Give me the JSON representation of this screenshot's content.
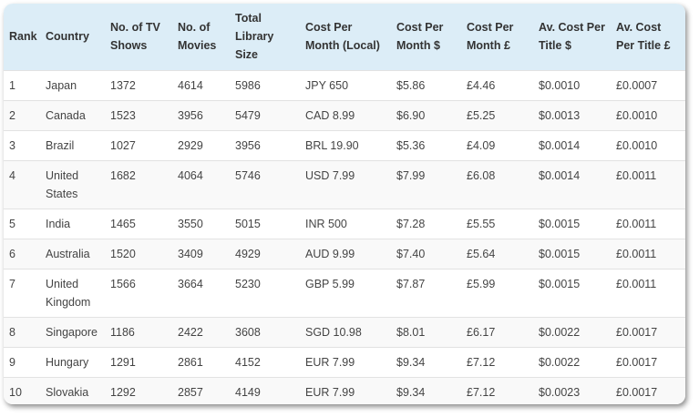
{
  "table": {
    "headers": [
      "Rank",
      "Country",
      "No. of TV Shows",
      "No. of Movies",
      "Total Library Size",
      "Cost Per Month (Local)",
      "Cost Per Month $",
      "Cost Per Month £",
      "Av. Cost Per Title $",
      "Av. Cost Per Title £"
    ],
    "rows": [
      [
        "1",
        "Japan",
        "1372",
        "4614",
        "5986",
        "JPY 650",
        "$5.86",
        "£4.46",
        "$0.0010",
        "£0.0007"
      ],
      [
        "2",
        "Canada",
        "1523",
        "3956",
        "5479",
        "CAD 8.99",
        "$6.90",
        "£5.25",
        "$0.0013",
        "£0.0010"
      ],
      [
        "3",
        "Brazil",
        "1027",
        "2929",
        "3956",
        "BRL 19.90",
        "$5.36",
        "£4.09",
        "$0.0014",
        "£0.0010"
      ],
      [
        "4",
        "United States",
        "1682",
        "4064",
        "5746",
        "USD 7.99",
        "$7.99",
        "£6.08",
        "$0.0014",
        "£0.0011"
      ],
      [
        "5",
        "India",
        "1465",
        "3550",
        "5015",
        "INR 500",
        "$7.28",
        "£5.55",
        "$0.0015",
        "£0.0011"
      ],
      [
        "6",
        "Australia",
        "1520",
        "3409",
        "4929",
        "AUD 9.99",
        "$7.40",
        "£5.64",
        "$0.0015",
        "£0.0011"
      ],
      [
        "7",
        "United Kingdom",
        "1566",
        "3664",
        "5230",
        "GBP 5.99",
        "$7.87",
        "£5.99",
        "$0.0015",
        "£0.0011"
      ],
      [
        "8",
        "Singapore",
        "1186",
        "2422",
        "3608",
        "SGD 10.98",
        "$8.01",
        "£6.17",
        "$0.0022",
        "£0.0017"
      ],
      [
        "9",
        "Hungary",
        "1291",
        "2861",
        "4152",
        "EUR 7.99",
        "$9.34",
        "£7.12",
        "$0.0022",
        "£0.0017"
      ],
      [
        "10",
        "Slovakia",
        "1292",
        "2857",
        "4149",
        "EUR 7.99",
        "$9.34",
        "£7.12",
        "$0.0023",
        "£0.0017"
      ]
    ]
  },
  "colors": {
    "header_bg": "#dcedf7",
    "row_alt_bg": "#f9f9f9",
    "border": "#e2e2e2"
  }
}
